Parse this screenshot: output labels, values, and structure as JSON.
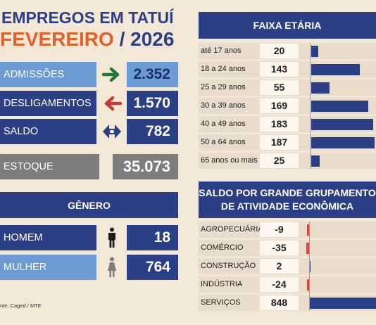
{
  "header": {
    "line1": "EMPREGOS EM TATUÍ",
    "month": "FEVEREIRO",
    "sep": " / ",
    "year": "2026"
  },
  "summary": {
    "admissoes": {
      "label": "ADMISSÕES",
      "value": "2.352"
    },
    "desligamentos": {
      "label": "DESLIGAMENTOS",
      "value": "1.570"
    },
    "saldo": {
      "label": "SALDO",
      "value": "782"
    },
    "estoque": {
      "label": "ESTOQUE",
      "value": "35.073"
    }
  },
  "genero": {
    "title": "GÊNERO",
    "homem": {
      "label": "HOMEM",
      "value": "18"
    },
    "mulher": {
      "label": "MULHER",
      "value": "764"
    }
  },
  "source": "nte: Caged / MTE",
  "colors": {
    "navy": "#2b3f86",
    "light_blue": "#6c9ad2",
    "gray": "#7d7d7d",
    "green": "#1f7a3a",
    "red": "#c63a3a",
    "orange": "#e2602a"
  },
  "chart_data": [
    {
      "type": "bar",
      "title": "FAIXA ETÁRIA",
      "orientation": "horizontal",
      "categories": [
        "até 17 anos",
        "18 a 24 anos",
        "25 a 29 anos",
        "30 a 39 anos",
        "40 a 49 anos",
        "50 a 64 anos",
        "65 anos ou mais"
      ],
      "values": [
        20,
        143,
        55,
        169,
        183,
        187,
        25
      ],
      "value_labels": [
        "20",
        "143",
        "55",
        "169",
        "183",
        "187",
        "25"
      ],
      "xlim": [
        0,
        187
      ],
      "bar_color": "#2b3f86"
    },
    {
      "type": "bar",
      "title_line1": "SALDO POR GRANDE GRUPAMENTO",
      "title_line2": "DE ATIVIDADE ECONÔMICA",
      "orientation": "horizontal",
      "categories": [
        "AGROPECUÁRIA",
        "COMÉRCIO",
        "CONSTRUÇÃO",
        "INDÚSTRIA",
        "SERVIÇOS"
      ],
      "values": [
        -9,
        -35,
        2,
        -24,
        848
      ],
      "value_labels": [
        "-9",
        "-35",
        "2",
        "-24",
        "848"
      ],
      "xlim": [
        -35,
        848
      ],
      "positive_color": "#2b3f86",
      "negative_color": "#e0453c"
    }
  ]
}
